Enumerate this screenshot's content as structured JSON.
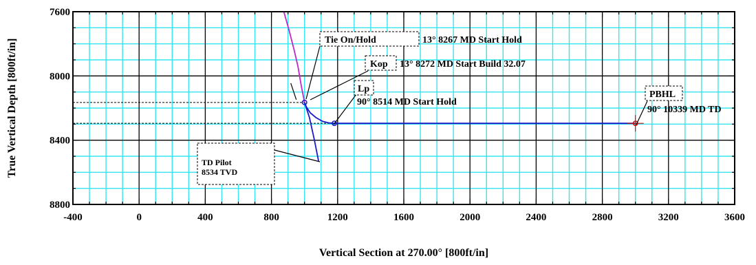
{
  "chart_data": {
    "type": "line",
    "title": "",
    "xlabel": "Vertical Section at 270.00° [800ft/in]",
    "ylabel": "True Vertical Depth [800ft/in]",
    "xlim": [
      -400,
      3600
    ],
    "ylim": [
      7600,
      8800
    ],
    "y_inverted": true,
    "x_ticks": [
      "-400",
      "0",
      "400",
      "800",
      "1200",
      "1600",
      "2000",
      "2400",
      "2800",
      "3200",
      "3600"
    ],
    "y_ticks": [
      "7600",
      "8000",
      "8400",
      "8800"
    ],
    "grid": true,
    "colors": {
      "grid": "#33e6f2",
      "major_grid": "#000000",
      "pilot": "#c026c9",
      "lateral": "#1a1ac8",
      "target": "#cc1111"
    },
    "series": [
      {
        "type": "line",
        "color": "#c026c9",
        "points": [
          [
            875,
            7600
          ],
          [
            905,
            7710
          ],
          [
            935,
            7830
          ],
          [
            960,
            7940
          ],
          [
            980,
            8060
          ],
          [
            1000,
            8165
          ]
        ]
      },
      {
        "type": "line",
        "color": "#1a1ac8",
        "points": [
          [
            1000,
            8165
          ],
          [
            1012,
            8195
          ],
          [
            1035,
            8230
          ],
          [
            1070,
            8260
          ],
          [
            1110,
            8283
          ],
          [
            1150,
            8293
          ],
          [
            1180,
            8295
          ],
          [
            3000,
            8295
          ]
        ]
      },
      {
        "type": "line",
        "color": "#1a1ac8",
        "points": [
          [
            1000,
            8165
          ],
          [
            1030,
            8260
          ],
          [
            1060,
            8400
          ],
          [
            1085,
            8530
          ]
        ]
      }
    ],
    "markers": [
      {
        "x": 1000,
        "y": 8165,
        "color": "#1a1ac8"
      },
      {
        "x": 1180,
        "y": 8295,
        "color": "#1a1ac8"
      },
      {
        "x": 3000,
        "y": 8295,
        "color": "#cc1111"
      }
    ],
    "reference_lines": [
      {
        "y": 8165,
        "x_from": -400,
        "x_to": 1000
      },
      {
        "y": 8295,
        "x_from": -400,
        "x_to": 3000
      }
    ],
    "annotations": [
      {
        "box": "Tie On/Hold",
        "text": "13° 8267 MD Start Hold"
      },
      {
        "box": "Kop",
        "text": "13° 8272 MD Start Build 32.07"
      },
      {
        "box": "Lp",
        "text": "90° 8514 MD Start Hold"
      },
      {
        "box": "PBHL",
        "text": "90° 10339 MD TD"
      },
      {
        "box_lines": [
          "TD Pilot",
          "8534 TVD"
        ]
      }
    ]
  }
}
